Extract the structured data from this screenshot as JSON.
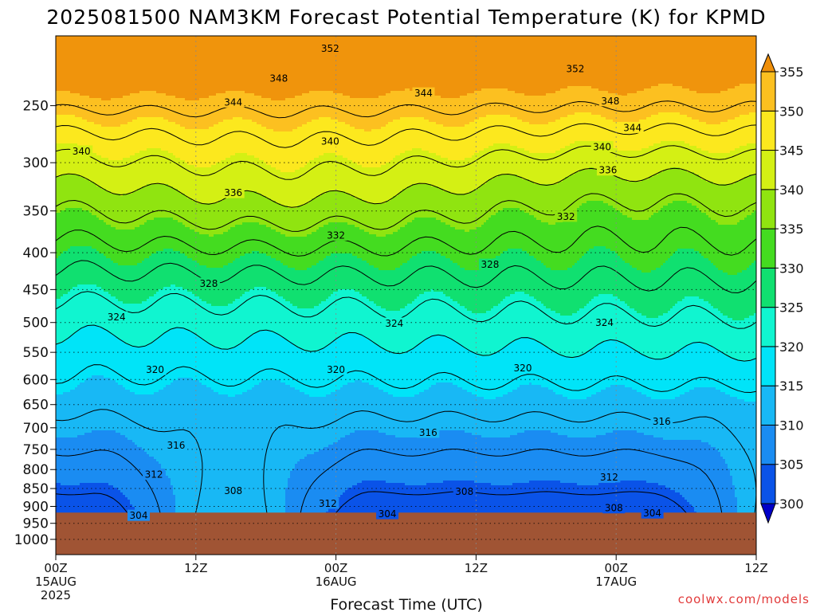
{
  "chart_data": {
    "type": "heatmap",
    "title": "2025081500 NAM3KM Forecast Potential Temperature (K) for KPMD",
    "xlabel": "Forecast Time (UTC)",
    "ylabel": "",
    "credit": "coolwx.com/models",
    "x_ticks": [
      {
        "h": 0,
        "label": "00Z",
        "date": "15AUG",
        "year": "2025"
      },
      {
        "h": 12,
        "label": "12Z",
        "date": "",
        "year": ""
      },
      {
        "h": 24,
        "label": "00Z",
        "date": "16AUG",
        "year": ""
      },
      {
        "h": 36,
        "label": "12Z",
        "date": "",
        "year": ""
      },
      {
        "h": 48,
        "label": "00Z",
        "date": "17AUG",
        "year": ""
      },
      {
        "h": 60,
        "label": "12Z",
        "date": "",
        "year": ""
      }
    ],
    "xlim": [
      0,
      60
    ],
    "y_ticks": [
      250,
      300,
      350,
      400,
      450,
      500,
      550,
      600,
      650,
      700,
      750,
      800,
      850,
      900,
      950,
      1000
    ],
    "ylim": [
      200,
      1050
    ],
    "y_scale": "log-pressure (inverted)",
    "grid": true,
    "colorbar": {
      "levels": [
        300,
        305,
        310,
        315,
        320,
        325,
        330,
        335,
        340,
        345,
        350,
        355
      ],
      "colors": [
        "#0010d8",
        "#0a53e8",
        "#1a8cf2",
        "#18b8f5",
        "#00e4f8",
        "#10f5d0",
        "#10e070",
        "#44dc20",
        "#90e410",
        "#d4f014",
        "#fce81e",
        "#fcc020",
        "#f0940c"
      ],
      "underflow": "#0000c8",
      "overflow": "#ef8f0a",
      "location": "right"
    },
    "terrain_color": "#a05434",
    "terrain_top_hpa": 918,
    "contour_levels": [
      304,
      308,
      312,
      316,
      320,
      324,
      328,
      332,
      336,
      340,
      344,
      348,
      352
    ],
    "contour_labels": [
      {
        "v": "352",
        "h": 23.5,
        "p": 208
      },
      {
        "v": "352",
        "h": 44.5,
        "p": 222
      },
      {
        "v": "348",
        "h": 19.1,
        "p": 229
      },
      {
        "v": "348",
        "h": 47.5,
        "p": 246
      },
      {
        "v": "344",
        "h": 15.2,
        "p": 247
      },
      {
        "v": "344",
        "h": 31.5,
        "p": 240
      },
      {
        "v": "344",
        "h": 49.4,
        "p": 268
      },
      {
        "v": "340",
        "h": 2.2,
        "p": 289
      },
      {
        "v": "340",
        "h": 23.5,
        "p": 280
      },
      {
        "v": "340",
        "h": 46.8,
        "p": 285
      },
      {
        "v": "336",
        "h": 15.2,
        "p": 330
      },
      {
        "v": "336",
        "h": 47.3,
        "p": 307
      },
      {
        "v": "332",
        "h": 24.0,
        "p": 378
      },
      {
        "v": "332",
        "h": 43.7,
        "p": 356
      },
      {
        "v": "328",
        "h": 13.1,
        "p": 441
      },
      {
        "v": "328",
        "h": 37.2,
        "p": 415
      },
      {
        "v": "324",
        "h": 5.2,
        "p": 491
      },
      {
        "v": "324",
        "h": 29.0,
        "p": 501
      },
      {
        "v": "324",
        "h": 47.0,
        "p": 500
      },
      {
        "v": "320",
        "h": 8.5,
        "p": 581
      },
      {
        "v": "320",
        "h": 24.0,
        "p": 581
      },
      {
        "v": "320",
        "h": 40.0,
        "p": 578
      },
      {
        "v": "316",
        "h": 10.3,
        "p": 740
      },
      {
        "v": "316",
        "h": 31.9,
        "p": 710
      },
      {
        "v": "316",
        "h": 51.9,
        "p": 685
      },
      {
        "v": "312",
        "h": 8.4,
        "p": 812
      },
      {
        "v": "312",
        "h": 23.3,
        "p": 891
      },
      {
        "v": "312",
        "h": 47.4,
        "p": 819
      },
      {
        "v": "308",
        "h": 15.2,
        "p": 855
      },
      {
        "v": "308",
        "h": 35.0,
        "p": 858
      },
      {
        "v": "308",
        "h": 47.8,
        "p": 904
      },
      {
        "v": "304",
        "h": 7.1,
        "p": 926
      },
      {
        "v": "304",
        "h": 28.4,
        "p": 921
      },
      {
        "v": "304",
        "h": 51.1,
        "p": 919
      }
    ]
  }
}
